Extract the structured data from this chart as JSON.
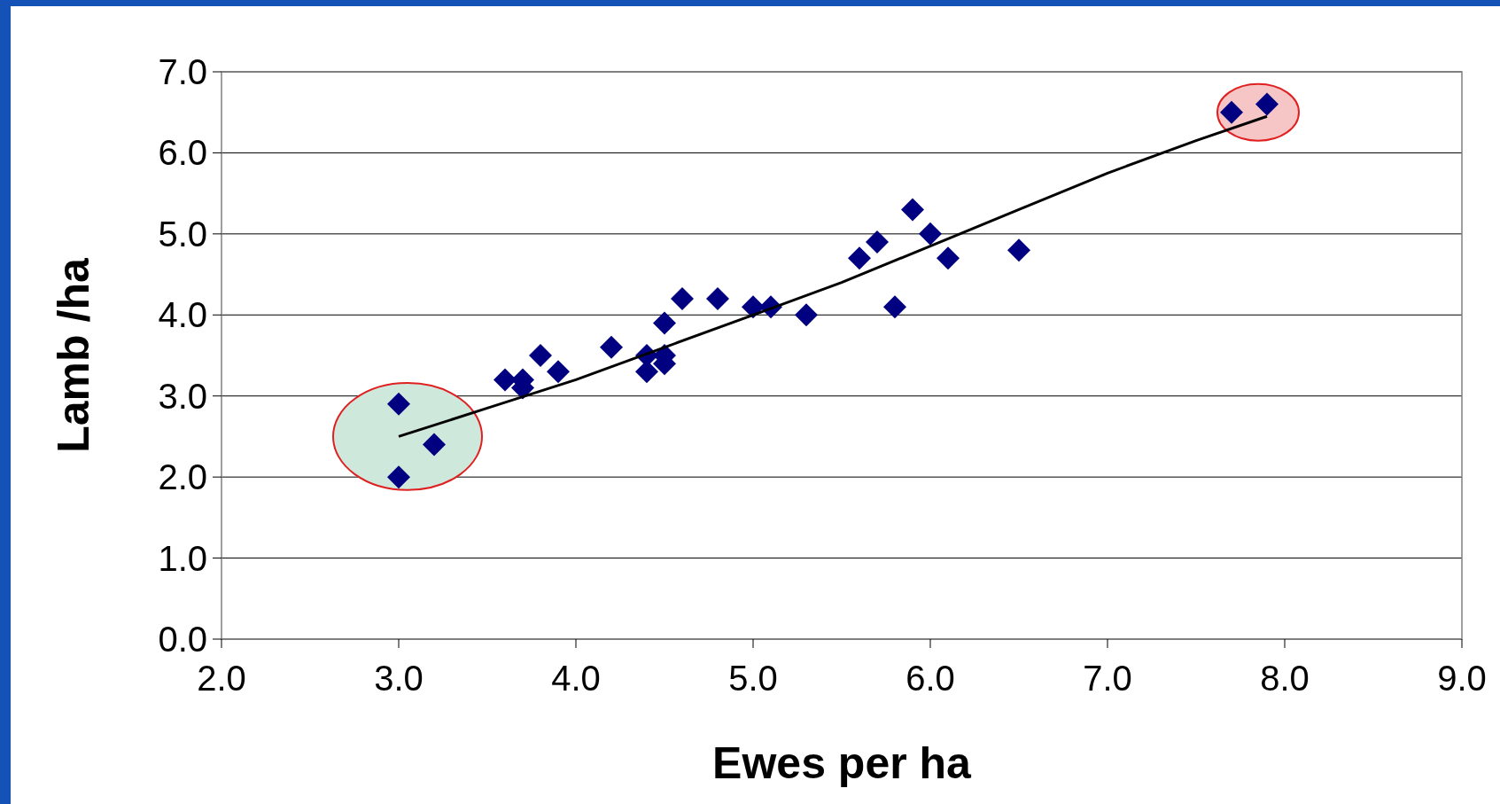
{
  "chart_data": {
    "type": "scatter",
    "xlabel": "Ewes per ha",
    "ylabel": "Lamb /ha",
    "xlim": [
      2,
      9
    ],
    "xticks": [
      {
        "value": 2,
        "label": "2.0"
      },
      {
        "value": 3,
        "label": "3.0"
      },
      {
        "value": 4,
        "label": "4.0"
      },
      {
        "value": 5,
        "label": "5.0"
      },
      {
        "value": 6,
        "label": "6.0"
      },
      {
        "value": 7,
        "label": "7.0"
      },
      {
        "value": 8,
        "label": "8.0"
      },
      {
        "value": 9,
        "label": "9.0"
      }
    ],
    "ylim": [
      0,
      7
    ],
    "yticks": [
      {
        "value": 0,
        "label": "0.0"
      },
      {
        "value": 1,
        "label": "1.0"
      },
      {
        "value": 2,
        "label": "2.0"
      },
      {
        "value": 3,
        "label": "3.0"
      },
      {
        "value": 4,
        "label": "4.0"
      },
      {
        "value": 5,
        "label": "5.0"
      },
      {
        "value": 6,
        "label": "6.0"
      },
      {
        "value": 7,
        "label": "7.0"
      }
    ],
    "grid": "y",
    "legend": false,
    "series": [
      {
        "type": "scatter",
        "marker": "diamond",
        "color": "#000080",
        "x": [
          3.0,
          3.0,
          3.2,
          3.6,
          3.7,
          3.7,
          3.8,
          3.9,
          4.2,
          4.4,
          4.4,
          4.5,
          4.5,
          4.5,
          4.6,
          4.8,
          5.0,
          5.1,
          5.3,
          5.6,
          5.7,
          5.8,
          5.9,
          6.0,
          6.1,
          6.5,
          7.7,
          7.9
        ],
        "values": [
          2.9,
          2.0,
          2.4,
          3.2,
          3.2,
          3.1,
          3.5,
          3.3,
          3.6,
          3.5,
          3.3,
          3.5,
          3.4,
          3.9,
          4.2,
          4.2,
          4.1,
          4.1,
          4.0,
          4.7,
          4.9,
          4.1,
          5.3,
          5.0,
          4.7,
          4.8,
          6.5,
          6.6
        ]
      },
      {
        "type": "line",
        "marker": "none",
        "line_style": "solid",
        "color": "#000000",
        "x": [
          3.0,
          3.5,
          4.0,
          4.5,
          5.0,
          5.5,
          6.0,
          6.5,
          7.0,
          7.5,
          7.9
        ],
        "values": [
          2.5,
          2.85,
          3.2,
          3.6,
          4.0,
          4.4,
          4.85,
          5.3,
          5.75,
          6.15,
          6.45
        ]
      }
    ]
  }
}
